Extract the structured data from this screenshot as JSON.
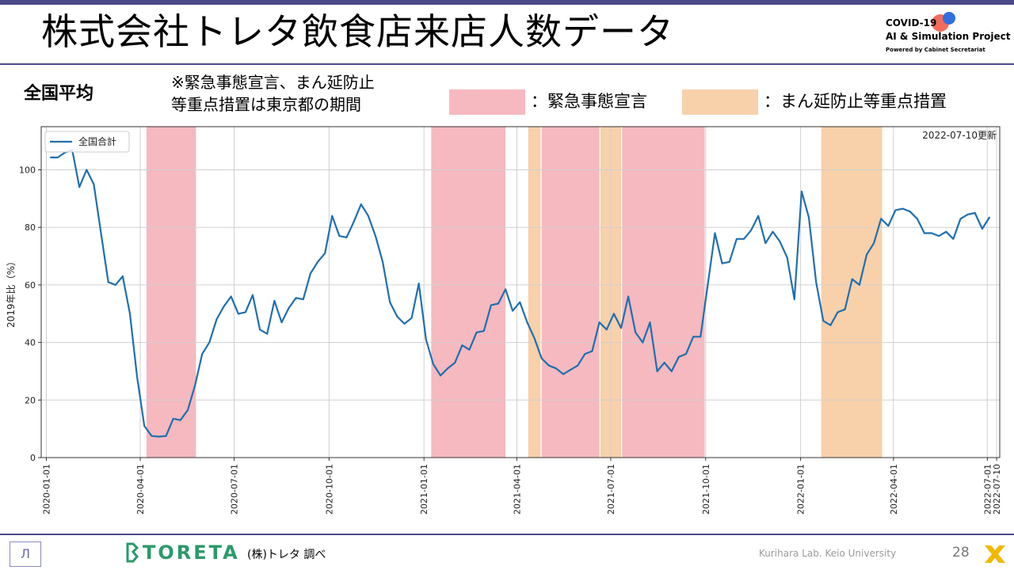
{
  "header": {
    "title": "株式会社トレタ飲食店来店人数データ",
    "logo": {
      "line1": "COVID-19",
      "line2": "AI & Simulation Project",
      "line3": "Powered by Cabinet Secretariat"
    }
  },
  "subtitle": "全国平均",
  "note": {
    "line1": "※緊急事態宣言、まん延防止",
    "line2": "等重点措置は東京都の期間"
  },
  "period_legend": [
    {
      "label": "：緊急事態宣言",
      "color": "#f5b9bf"
    },
    {
      "label": "：まん延防止等重点措置",
      "color": "#f8d0aa"
    }
  ],
  "chart_data": {
    "type": "line",
    "ylabel": "2019年比（%）",
    "xlabel": "",
    "ylim": [
      0,
      115
    ],
    "yticks": [
      0,
      20,
      40,
      60,
      80,
      100
    ],
    "xticks": [
      "2020-01-01",
      "2020-04-01",
      "2020-07-01",
      "2020-10-01",
      "2021-01-01",
      "2021-04-01",
      "2021-07-01",
      "2021-10-01",
      "2022-01-01",
      "2022-04-01",
      "2022-07-01",
      "2022-07-10"
    ],
    "grid": true,
    "legend_position": "top-left",
    "annotation": "2022-07-10更新",
    "series": [
      {
        "name": "全国合計",
        "color": "#1f6fb0",
        "points": [
          [
            "2020-01-05",
            104.3
          ],
          [
            "2020-01-12",
            104.3
          ],
          [
            "2020-01-19",
            106
          ],
          [
            "2020-01-26",
            107
          ],
          [
            "2020-02-02",
            94
          ],
          [
            "2020-02-09",
            100
          ],
          [
            "2020-02-16",
            95
          ],
          [
            "2020-02-23",
            78
          ],
          [
            "2020-03-01",
            61
          ],
          [
            "2020-03-08",
            60
          ],
          [
            "2020-03-15",
            63
          ],
          [
            "2020-03-22",
            50
          ],
          [
            "2020-03-29",
            28
          ],
          [
            "2020-04-05",
            11
          ],
          [
            "2020-04-12",
            7.5
          ],
          [
            "2020-04-19",
            7.3
          ],
          [
            "2020-04-26",
            7.5
          ],
          [
            "2020-05-03",
            13.5
          ],
          [
            "2020-05-10",
            13
          ],
          [
            "2020-05-17",
            16.5
          ],
          [
            "2020-05-24",
            25
          ],
          [
            "2020-05-31",
            36
          ],
          [
            "2020-06-07",
            40
          ],
          [
            "2020-06-14",
            48
          ],
          [
            "2020-06-21",
            52.5
          ],
          [
            "2020-06-28",
            56
          ],
          [
            "2020-07-05",
            50
          ],
          [
            "2020-07-12",
            50.5
          ],
          [
            "2020-07-19",
            56.5
          ],
          [
            "2020-07-26",
            44.5
          ],
          [
            "2020-08-02",
            43
          ],
          [
            "2020-08-09",
            54.5
          ],
          [
            "2020-08-16",
            47
          ],
          [
            "2020-08-23",
            52
          ],
          [
            "2020-08-30",
            55.5
          ],
          [
            "2020-09-06",
            55
          ],
          [
            "2020-09-13",
            64
          ],
          [
            "2020-09-20",
            68
          ],
          [
            "2020-09-27",
            71
          ],
          [
            "2020-10-04",
            84
          ],
          [
            "2020-10-11",
            77
          ],
          [
            "2020-10-18",
            76.5
          ],
          [
            "2020-10-25",
            82
          ],
          [
            "2020-11-01",
            88
          ],
          [
            "2020-11-08",
            84
          ],
          [
            "2020-11-15",
            77
          ],
          [
            "2020-11-22",
            68
          ],
          [
            "2020-11-29",
            54
          ],
          [
            "2020-12-06",
            49
          ],
          [
            "2020-12-13",
            46.5
          ],
          [
            "2020-12-20",
            48.5
          ],
          [
            "2020-12-27",
            60.5
          ],
          [
            "2021-01-03",
            41
          ],
          [
            "2021-01-10",
            32.5
          ],
          [
            "2021-01-17",
            28.5
          ],
          [
            "2021-01-24",
            31
          ],
          [
            "2021-01-31",
            33
          ],
          [
            "2021-02-07",
            39
          ],
          [
            "2021-02-14",
            37.5
          ],
          [
            "2021-02-21",
            43.5
          ],
          [
            "2021-02-28",
            44
          ],
          [
            "2021-03-07",
            53
          ],
          [
            "2021-03-14",
            53.5
          ],
          [
            "2021-03-21",
            58.5
          ],
          [
            "2021-03-28",
            51
          ],
          [
            "2021-04-04",
            54
          ],
          [
            "2021-04-11",
            47
          ],
          [
            "2021-04-18",
            41.5
          ],
          [
            "2021-04-25",
            34.5
          ],
          [
            "2021-05-02",
            32
          ],
          [
            "2021-05-09",
            31
          ],
          [
            "2021-05-16",
            29
          ],
          [
            "2021-05-23",
            30.5
          ],
          [
            "2021-05-30",
            32
          ],
          [
            "2021-06-06",
            36
          ],
          [
            "2021-06-13",
            37
          ],
          [
            "2021-06-20",
            47
          ],
          [
            "2021-06-27",
            44.5
          ],
          [
            "2021-07-04",
            50
          ],
          [
            "2021-07-11",
            45
          ],
          [
            "2021-07-18",
            56
          ],
          [
            "2021-07-25",
            43.5
          ],
          [
            "2021-08-01",
            40
          ],
          [
            "2021-08-08",
            47
          ],
          [
            "2021-08-15",
            30
          ],
          [
            "2021-08-22",
            33
          ],
          [
            "2021-08-29",
            30
          ],
          [
            "2021-09-05",
            35
          ],
          [
            "2021-09-12",
            36
          ],
          [
            "2021-09-19",
            42
          ],
          [
            "2021-09-26",
            42
          ],
          [
            "2021-10-03",
            60
          ],
          [
            "2021-10-10",
            78
          ],
          [
            "2021-10-17",
            67.5
          ],
          [
            "2021-10-24",
            68
          ],
          [
            "2021-10-31",
            76
          ],
          [
            "2021-11-07",
            76
          ],
          [
            "2021-11-14",
            79
          ],
          [
            "2021-11-21",
            84
          ],
          [
            "2021-11-28",
            74.5
          ],
          [
            "2021-12-05",
            78.5
          ],
          [
            "2021-12-12",
            75
          ],
          [
            "2021-12-19",
            69.5
          ],
          [
            "2021-12-26",
            55
          ],
          [
            "2022-01-02",
            92.5
          ],
          [
            "2022-01-09",
            83.5
          ],
          [
            "2022-01-16",
            61
          ],
          [
            "2022-01-23",
            47.5
          ],
          [
            "2022-01-30",
            46
          ],
          [
            "2022-02-06",
            50.5
          ],
          [
            "2022-02-13",
            51.5
          ],
          [
            "2022-02-20",
            62
          ],
          [
            "2022-02-27",
            60
          ],
          [
            "2022-03-06",
            70.5
          ],
          [
            "2022-03-13",
            74.5
          ],
          [
            "2022-03-20",
            83
          ],
          [
            "2022-03-27",
            80.5
          ],
          [
            "2022-04-03",
            86
          ],
          [
            "2022-04-10",
            86.5
          ],
          [
            "2022-04-17",
            85.5
          ],
          [
            "2022-04-24",
            83
          ],
          [
            "2022-05-01",
            78
          ],
          [
            "2022-05-08",
            78
          ],
          [
            "2022-05-15",
            77
          ],
          [
            "2022-05-22",
            78.5
          ],
          [
            "2022-05-29",
            76
          ],
          [
            "2022-06-05",
            83
          ],
          [
            "2022-06-12",
            84.5
          ],
          [
            "2022-06-19",
            85
          ],
          [
            "2022-06-26",
            79.5
          ],
          [
            "2022-07-03",
            83.5
          ]
        ]
      }
    ],
    "periods": [
      {
        "type": "emergency",
        "start": "2020-04-07",
        "end": "2020-05-25",
        "color": "#f5b9bf"
      },
      {
        "type": "emergency",
        "start": "2021-01-08",
        "end": "2021-03-21",
        "color": "#f5b9bf"
      },
      {
        "type": "priority",
        "start": "2021-04-12",
        "end": "2021-04-24",
        "color": "#f8d0aa"
      },
      {
        "type": "emergency",
        "start": "2021-04-25",
        "end": "2021-06-20",
        "color": "#f5b9bf"
      },
      {
        "type": "priority",
        "start": "2021-06-21",
        "end": "2021-07-11",
        "color": "#f8d0aa"
      },
      {
        "type": "emergency",
        "start": "2021-07-12",
        "end": "2021-09-30",
        "color": "#f5b9bf"
      },
      {
        "type": "priority",
        "start": "2022-01-21",
        "end": "2022-03-21",
        "color": "#f8d0aa"
      }
    ]
  },
  "footer": {
    "lab_logo": "Л",
    "brand": "TORETA",
    "source": "(株)トレタ 調べ",
    "credit": "Kurihara Lab. Keio University",
    "page": "28"
  }
}
